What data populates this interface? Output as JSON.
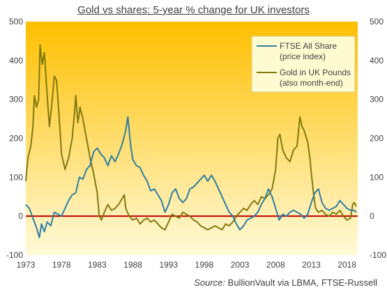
{
  "chart_data": {
    "type": "line",
    "title": "Gold vs shares: 5-year % change for UK investors",
    "xlabel": "",
    "ylabel": "",
    "xlim": [
      1973,
      2019.5
    ],
    "ylim": [
      -100,
      500
    ],
    "x_ticks": [
      "1973",
      "1978",
      "1983",
      "1988",
      "1993",
      "1998",
      "2003",
      "2008",
      "2013",
      "2018"
    ],
    "y_ticks": [
      "500",
      "400",
      "300",
      "200",
      "100",
      "0",
      "-100"
    ],
    "grid": false,
    "zero_line": true,
    "legend_position": "top-right",
    "series": [
      {
        "name": "FTSE All Share (price index)",
        "legend_lines": [
          "FTSE All Share",
          "(price index)"
        ],
        "color": "#2e7ea3",
        "points": [
          [
            1973.0,
            30
          ],
          [
            1973.5,
            20
          ],
          [
            1974.0,
            -5
          ],
          [
            1974.5,
            -30
          ],
          [
            1974.9,
            -55
          ],
          [
            1975.2,
            -20
          ],
          [
            1975.6,
            -40
          ],
          [
            1976.0,
            -15
          ],
          [
            1976.5,
            -25
          ],
          [
            1977.0,
            10
          ],
          [
            1977.5,
            5
          ],
          [
            1978.0,
            0
          ],
          [
            1978.5,
            20
          ],
          [
            1979.0,
            40
          ],
          [
            1979.5,
            55
          ],
          [
            1980.0,
            60
          ],
          [
            1980.5,
            100
          ],
          [
            1981.0,
            95
          ],
          [
            1981.5,
            120
          ],
          [
            1982.0,
            130
          ],
          [
            1982.5,
            165
          ],
          [
            1983.0,
            175
          ],
          [
            1983.5,
            160
          ],
          [
            1984.0,
            150
          ],
          [
            1984.5,
            130
          ],
          [
            1985.0,
            155
          ],
          [
            1985.5,
            140
          ],
          [
            1986.0,
            160
          ],
          [
            1986.5,
            185
          ],
          [
            1987.0,
            220
          ],
          [
            1987.3,
            255
          ],
          [
            1987.7,
            180
          ],
          [
            1988.0,
            145
          ],
          [
            1988.5,
            130
          ],
          [
            1989.0,
            125
          ],
          [
            1989.5,
            105
          ],
          [
            1990.0,
            90
          ],
          [
            1990.5,
            65
          ],
          [
            1991.0,
            70
          ],
          [
            1991.5,
            55
          ],
          [
            1992.0,
            40
          ],
          [
            1992.5,
            10
          ],
          [
            1993.0,
            30
          ],
          [
            1993.5,
            60
          ],
          [
            1994.0,
            70
          ],
          [
            1994.5,
            45
          ],
          [
            1995.0,
            35
          ],
          [
            1995.5,
            45
          ],
          [
            1996.0,
            70
          ],
          [
            1996.5,
            75
          ],
          [
            1997.0,
            85
          ],
          [
            1997.5,
            95
          ],
          [
            1998.0,
            105
          ],
          [
            1998.5,
            90
          ],
          [
            1999.0,
            105
          ],
          [
            1999.5,
            90
          ],
          [
            2000.0,
            70
          ],
          [
            2000.5,
            50
          ],
          [
            2001.0,
            30
          ],
          [
            2001.5,
            10
          ],
          [
            2002.0,
            0
          ],
          [
            2002.5,
            -20
          ],
          [
            2003.0,
            -35
          ],
          [
            2003.5,
            -25
          ],
          [
            2004.0,
            -10
          ],
          [
            2004.5,
            -5
          ],
          [
            2005.0,
            0
          ],
          [
            2005.5,
            10
          ],
          [
            2006.0,
            30
          ],
          [
            2006.5,
            45
          ],
          [
            2007.0,
            70
          ],
          [
            2007.5,
            50
          ],
          [
            2008.0,
            20
          ],
          [
            2008.5,
            -10
          ],
          [
            2009.0,
            5
          ],
          [
            2009.5,
            0
          ],
          [
            2010.0,
            10
          ],
          [
            2010.5,
            15
          ],
          [
            2011.0,
            10
          ],
          [
            2011.5,
            5
          ],
          [
            2012.0,
            -5
          ],
          [
            2012.5,
            5
          ],
          [
            2013.0,
            35
          ],
          [
            2013.5,
            60
          ],
          [
            2014.0,
            70
          ],
          [
            2014.5,
            35
          ],
          [
            2015.0,
            20
          ],
          [
            2015.5,
            15
          ],
          [
            2016.0,
            20
          ],
          [
            2016.5,
            25
          ],
          [
            2017.0,
            40
          ],
          [
            2017.5,
            30
          ],
          [
            2018.0,
            20
          ],
          [
            2018.5,
            15
          ],
          [
            2019.0,
            15
          ],
          [
            2019.3,
            10
          ]
        ]
      },
      {
        "name": "Gold in UK Pounds (also month-end)",
        "legend_lines": [
          "Gold in UK Pounds",
          "(also month-end)"
        ],
        "color": "#7f7a10",
        "points": [
          [
            1973.0,
            90
          ],
          [
            1973.3,
            150
          ],
          [
            1973.7,
            180
          ],
          [
            1974.0,
            230
          ],
          [
            1974.2,
            310
          ],
          [
            1974.5,
            280
          ],
          [
            1974.8,
            300
          ],
          [
            1975.0,
            440
          ],
          [
            1975.3,
            390
          ],
          [
            1975.6,
            420
          ],
          [
            1976.0,
            310
          ],
          [
            1976.3,
            230
          ],
          [
            1976.6,
            280
          ],
          [
            1977.0,
            360
          ],
          [
            1977.3,
            350
          ],
          [
            1977.5,
            300
          ],
          [
            1977.8,
            220
          ],
          [
            1978.0,
            160
          ],
          [
            1978.5,
            120
          ],
          [
            1979.0,
            150
          ],
          [
            1979.5,
            200
          ],
          [
            1979.8,
            260
          ],
          [
            1980.0,
            310
          ],
          [
            1980.3,
            240
          ],
          [
            1980.6,
            280
          ],
          [
            1981.0,
            250
          ],
          [
            1981.5,
            200
          ],
          [
            1982.0,
            150
          ],
          [
            1982.5,
            110
          ],
          [
            1983.0,
            60
          ],
          [
            1983.3,
            0
          ],
          [
            1983.6,
            -10
          ],
          [
            1984.0,
            10
          ],
          [
            1984.5,
            30
          ],
          [
            1985.0,
            15
          ],
          [
            1985.5,
            20
          ],
          [
            1986.0,
            30
          ],
          [
            1986.5,
            45
          ],
          [
            1986.8,
            55
          ],
          [
            1987.0,
            20
          ],
          [
            1987.5,
            0
          ],
          [
            1988.0,
            -10
          ],
          [
            1988.5,
            -5
          ],
          [
            1989.0,
            -20
          ],
          [
            1989.5,
            -10
          ],
          [
            1990.0,
            -5
          ],
          [
            1990.5,
            -15
          ],
          [
            1991.0,
            -10
          ],
          [
            1991.5,
            -20
          ],
          [
            1992.0,
            -30
          ],
          [
            1992.5,
            -35
          ],
          [
            1993.0,
            -15
          ],
          [
            1993.5,
            5
          ],
          [
            1994.0,
            0
          ],
          [
            1994.5,
            -5
          ],
          [
            1995.0,
            10
          ],
          [
            1995.5,
            5
          ],
          [
            1996.0,
            0
          ],
          [
            1996.5,
            -10
          ],
          [
            1997.0,
            -15
          ],
          [
            1997.5,
            -25
          ],
          [
            1998.0,
            -30
          ],
          [
            1998.5,
            -35
          ],
          [
            1999.0,
            -30
          ],
          [
            1999.5,
            -25
          ],
          [
            2000.0,
            -30
          ],
          [
            2000.5,
            -35
          ],
          [
            2001.0,
            -20
          ],
          [
            2001.5,
            -25
          ],
          [
            2002.0,
            -15
          ],
          [
            2002.5,
            0
          ],
          [
            2003.0,
            10
          ],
          [
            2003.5,
            20
          ],
          [
            2004.0,
            15
          ],
          [
            2004.5,
            30
          ],
          [
            2005.0,
            40
          ],
          [
            2005.5,
            30
          ],
          [
            2006.0,
            50
          ],
          [
            2006.5,
            45
          ],
          [
            2007.0,
            55
          ],
          [
            2007.5,
            70
          ],
          [
            2008.0,
            120
          ],
          [
            2008.3,
            200
          ],
          [
            2008.6,
            210
          ],
          [
            2009.0,
            170
          ],
          [
            2009.5,
            150
          ],
          [
            2010.0,
            140
          ],
          [
            2010.5,
            170
          ],
          [
            2011.0,
            180
          ],
          [
            2011.4,
            255
          ],
          [
            2011.7,
            230
          ],
          [
            2012.0,
            220
          ],
          [
            2012.5,
            190
          ],
          [
            2012.8,
            150
          ],
          [
            2013.0,
            110
          ],
          [
            2013.3,
            60
          ],
          [
            2013.6,
            20
          ],
          [
            2014.0,
            10
          ],
          [
            2014.5,
            15
          ],
          [
            2015.0,
            5
          ],
          [
            2015.5,
            0
          ],
          [
            2016.0,
            10
          ],
          [
            2016.5,
            5
          ],
          [
            2017.0,
            15
          ],
          [
            2017.5,
            0
          ],
          [
            2018.0,
            -10
          ],
          [
            2018.5,
            -5
          ],
          [
            2018.8,
            30
          ],
          [
            2019.0,
            35
          ],
          [
            2019.3,
            25
          ]
        ]
      }
    ],
    "annotations": [
      {
        "text": "0",
        "role": "zero-reference"
      }
    ]
  },
  "colors": {
    "background_top": "#ffbf00",
    "background_bottom": "#fffad8",
    "zero_line": "#c00000",
    "legend_bg": "#fffbd0",
    "legend_border": "#d8c88a"
  },
  "source": {
    "label": "Source:",
    "text": "BullionVault via LBMA, FTSE-Russell"
  }
}
